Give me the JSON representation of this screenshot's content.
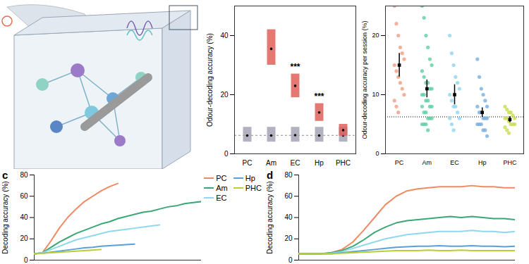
{
  "chart_data": [
    {
      "type": "violin",
      "y_label": "Odour-decoding accuracy (%)",
      "categories": [
        "PC",
        "Am",
        "EC",
        "Hp",
        "PHC"
      ],
      "series": [
        {
          "color": "#a3a3b5",
          "values": [
            6.2,
            6.2,
            6.3,
            6.2,
            6.2
          ],
          "ranges": [
            [
              4,
              9
            ],
            [
              4,
              9
            ],
            [
              4,
              9
            ],
            [
              4,
              9
            ],
            [
              4,
              9
            ]
          ]
        },
        {
          "color": "#e0605a",
          "values": [
            null,
            35.5,
            23,
            14,
            8
          ],
          "ranges": [
            null,
            [
              30,
              42
            ],
            [
              19,
              27
            ],
            [
              11,
              17
            ],
            [
              6,
              10
            ]
          ]
        }
      ],
      "annotations": [
        {
          "category": "EC",
          "text": "***"
        },
        {
          "category": "Hp",
          "text": "***"
        }
      ],
      "chance": 6.25,
      "ylim": [
        0,
        50
      ],
      "yticks": [
        0,
        20,
        40
      ]
    },
    {
      "type": "scatter",
      "y_label": "Odour-decoding accuracy per session (%)",
      "categories": [
        "PC",
        "Am",
        "EC",
        "Hp",
        "PHC"
      ],
      "colors": [
        "#f39c83",
        "#5ccfa2",
        "#8ed6ef",
        "#78aee0",
        "#c9dc4c"
      ],
      "points": [
        [
          25,
          22,
          20,
          18,
          17,
          16,
          15,
          14,
          13,
          12,
          11,
          10,
          9,
          8,
          7
        ],
        [
          25,
          23,
          20,
          18,
          16,
          15,
          14,
          13,
          12,
          12,
          11,
          11,
          10,
          10,
          9,
          9,
          8,
          8,
          8,
          7,
          7,
          6,
          6,
          6,
          5,
          5,
          5,
          4
        ],
        [
          20,
          17,
          15,
          13,
          12,
          11,
          10,
          9,
          8,
          8,
          7,
          6,
          6,
          5,
          4
        ],
        [
          16,
          13,
          11,
          10,
          9,
          8,
          8,
          7,
          7,
          6,
          6,
          6,
          5,
          5,
          5,
          4,
          4,
          3
        ],
        [
          8,
          7.5,
          7,
          7,
          6.5,
          6,
          6,
          6,
          5.5,
          5,
          5,
          5,
          4.5,
          4,
          3.5
        ]
      ],
      "values": [
        15,
        11,
        10,
        7,
        5.8
      ],
      "errors": [
        2,
        1.5,
        1.7,
        0.8,
        0.5
      ],
      "chance": 6.25,
      "ylim": [
        0,
        25
      ],
      "yticks": [
        0,
        10,
        20
      ]
    },
    {
      "type": "line",
      "title": "c",
      "y_label": "Decoding accuracy (%)",
      "x": [
        0,
        5,
        10,
        15,
        20,
        25,
        30,
        35,
        40,
        45,
        50,
        55,
        60,
        65,
        70,
        75,
        80,
        85,
        90,
        95,
        100
      ],
      "xlim": [
        0,
        100
      ],
      "ylim": [
        0,
        80
      ],
      "yticks": [
        0,
        20,
        40,
        60,
        80
      ],
      "tick_labels": "y",
      "legend": "top-right",
      "series": [
        {
          "name": "PC",
          "color": "#ef8a62",
          "values": [
            6,
            7,
            18,
            30,
            40,
            48,
            55,
            60,
            65,
            69,
            72,
            null,
            null,
            null,
            null,
            null,
            null,
            null,
            null,
            null,
            null
          ]
        },
        {
          "name": "Am",
          "color": "#3aa876",
          "values": [
            6,
            7,
            12,
            17,
            21,
            25,
            28,
            31,
            34,
            36,
            39,
            41,
            43,
            45,
            46,
            48,
            50,
            51,
            53,
            54,
            55
          ]
        },
        {
          "name": "EC",
          "color": "#8fd8ee",
          "values": [
            6,
            7,
            10,
            13,
            16,
            19,
            21,
            23,
            25,
            27,
            28,
            29,
            30,
            31,
            32,
            33,
            null,
            null,
            null,
            null,
            null
          ]
        },
        {
          "name": "Hp",
          "color": "#5aa0d8",
          "values": [
            6,
            6.5,
            7.5,
            8.5,
            9.5,
            10.5,
            11.5,
            12,
            13,
            13.5,
            14,
            14.5,
            15,
            null,
            null,
            null,
            null,
            null,
            null,
            null,
            null
          ]
        },
        {
          "name": "PHC",
          "color": "#bccd3a",
          "values": [
            6,
            6.5,
            7,
            7.5,
            8,
            8.5,
            9,
            9.5,
            10,
            null,
            null,
            null,
            null,
            null,
            null,
            null,
            null,
            null,
            null,
            null,
            null
          ]
        }
      ]
    },
    {
      "type": "line",
      "title": "d",
      "y_label": "Decoding accuracy (%)",
      "x": [
        0,
        5,
        10,
        15,
        20,
        25,
        30,
        35,
        40,
        45,
        50,
        55,
        60,
        65,
        70,
        75,
        80,
        85,
        90,
        95,
        100
      ],
      "xlim": [
        0,
        100
      ],
      "ylim": [
        0,
        80
      ],
      "yticks": [
        0,
        20,
        40,
        60,
        80
      ],
      "tick_labels": "y",
      "series": [
        {
          "name": "PC",
          "color": "#ef8a62",
          "values": [
            6,
            6,
            6,
            7,
            10,
            17,
            28,
            40,
            52,
            60,
            65,
            67,
            68,
            69,
            69,
            69,
            70,
            69,
            69,
            68,
            68
          ]
        },
        {
          "name": "Am",
          "color": "#3aa876",
          "values": [
            6,
            6,
            6,
            7,
            9,
            13,
            19,
            26,
            31,
            35,
            37,
            38,
            39,
            40,
            41,
            40,
            41,
            40,
            39,
            39,
            38
          ]
        },
        {
          "name": "EC",
          "color": "#8fd8ee",
          "values": [
            6,
            6,
            6,
            6.5,
            8,
            11,
            14,
            17,
            20,
            22,
            24,
            25,
            26,
            27,
            27,
            27,
            28,
            27,
            27,
            26,
            27
          ]
        },
        {
          "name": "Hp",
          "color": "#5aa0d8",
          "values": [
            6,
            6,
            6,
            6,
            7,
            8,
            9,
            10,
            11,
            12,
            12.5,
            13,
            13,
            13.5,
            13,
            13,
            13.5,
            13,
            13,
            12.5,
            13
          ]
        },
        {
          "name": "PHC",
          "color": "#bccd3a",
          "values": [
            6,
            6,
            6,
            6,
            6.5,
            7,
            7.5,
            8,
            8.5,
            9,
            9,
            9,
            9.5,
            9,
            9,
            9.5,
            9,
            9,
            9,
            9,
            9
          ]
        }
      ]
    }
  ]
}
